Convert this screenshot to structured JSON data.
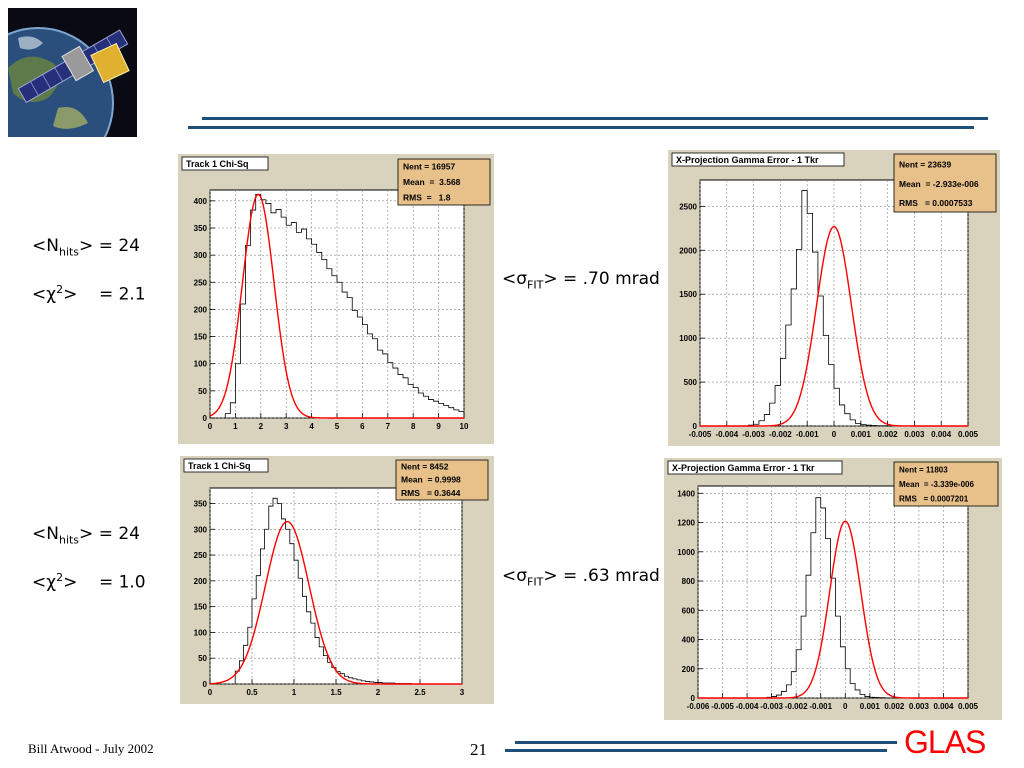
{
  "footer": {
    "author": "Bill Atwood  - July 2002",
    "page_number": "21",
    "brand": "GLAS"
  },
  "labels": {
    "top_nhits_prefix": "<N",
    "top_nhits_sub": "hits",
    "top_nhits_suffix": "> = 24",
    "top_chi_prefix": "<χ",
    "top_chi_sup": "2",
    "top_chi_suffix": ">    = 2.1",
    "top_sigma_prefix": "<σ",
    "top_sigma_sub": "FIT",
    "top_sigma_suffix": "> = .70 mrad",
    "bot_nhits_prefix": "<N",
    "bot_nhits_sub": "hits",
    "bot_nhits_suffix": "> = 24",
    "bot_chi_prefix": "<χ",
    "bot_chi_sup": "2",
    "bot_chi_suffix": ">    = 1.0",
    "bot_sigma_prefix": "<σ",
    "bot_sigma_sub": "FIT",
    "bot_sigma_suffix": "> = .63 mrad"
  },
  "colors": {
    "accent_line": "#1f4e79",
    "brand": "#ff0000",
    "fit_curve": "#ff0000",
    "stats_box": "#e8c08a",
    "panel_bg": "#d9d3bd"
  },
  "chart_data": [
    {
      "id": "chi1",
      "type": "histogram",
      "title": "Track 1 Chi-Sq",
      "stats": [
        "Nent = 16957",
        "Mean  =  3.568",
        "RMS  =   1.8"
      ],
      "xlim": [
        0,
        10
      ],
      "ylim": [
        0,
        420
      ],
      "xticks": [
        0,
        1,
        2,
        3,
        4,
        5,
        6,
        7,
        8,
        9,
        10
      ],
      "xticklabels": [
        "0",
        "1",
        "2",
        "3",
        "4",
        "5",
        "6",
        "7",
        "8",
        "9",
        "10"
      ],
      "yticks": [
        0,
        50,
        100,
        150,
        200,
        250,
        300,
        350,
        400
      ],
      "yticklabels": [
        "0",
        "50",
        "100",
        "150",
        "200",
        "250",
        "300",
        "350",
        "400"
      ],
      "hist": {
        "x0": 0.6,
        "bin": 0.2,
        "values": [
          8,
          28,
          100,
          210,
          318,
          383,
          412,
          402,
          395,
          378,
          384,
          370,
          355,
          360,
          342,
          348,
          330,
          320,
          305,
          292,
          275,
          262,
          250,
          232,
          222,
          198,
          186,
          172,
          155,
          146,
          125,
          118,
          102,
          92,
          80,
          74,
          62,
          56,
          46,
          40,
          34,
          31,
          27,
          23,
          19,
          15,
          12
        ]
      },
      "fit": {
        "type": "gauss",
        "mean": 1.9,
        "sigma": 0.62,
        "amp": 412
      }
    },
    {
      "id": "proj1",
      "type": "histogram",
      "title": "X-Projection Gamma Error - 1 Tkr",
      "stats": [
        "Nent = 23639",
        "Mean  = -2.933e-006",
        "RMS   = 0.0007533"
      ],
      "xlim": [
        -0.005,
        0.005
      ],
      "ylim": [
        0,
        2800
      ],
      "xticks": [
        -0.005,
        -0.004,
        -0.003,
        -0.002,
        -0.001,
        0,
        0.001,
        0.002,
        0.003,
        0.004,
        0.005
      ],
      "xticklabels": [
        "-0.005",
        "-0.004",
        "-0.003",
        "-0.002",
        "-0.001",
        "0",
        "0.001",
        "0.002",
        "0.003",
        "0.004",
        "0.005"
      ],
      "yticks": [
        0,
        500,
        1000,
        1500,
        2000,
        2500
      ],
      "yticklabels": [
        "0",
        "500",
        "1000",
        "1500",
        "2000",
        "2500"
      ],
      "hist": {
        "x0": -0.0032,
        "bin": 0.0002,
        "values": [
          10,
          20,
          60,
          130,
          260,
          460,
          770,
          1150,
          1560,
          2010,
          2680,
          2420,
          1980,
          1480,
          1030,
          700,
          430,
          240,
          140,
          70,
          30,
          15,
          10,
          5,
          3,
          2,
          1,
          1,
          0,
          0,
          0,
          0
        ]
      },
      "fit": {
        "type": "gauss",
        "mean": 0.0,
        "sigma": 0.00065,
        "amp": 2270
      }
    },
    {
      "id": "chi2",
      "type": "histogram",
      "title": "Track 1 Chi-Sq",
      "stats": [
        "Nent = 8452",
        "Mean  = 0.9998",
        "RMS   = 0.3644"
      ],
      "xlim": [
        0,
        3
      ],
      "ylim": [
        0,
        380
      ],
      "xticks": [
        0,
        0.5,
        1,
        1.5,
        2,
        2.5,
        3
      ],
      "xticklabels": [
        "0",
        "0.5",
        "1",
        "1.5",
        "2",
        "2.5",
        "3"
      ],
      "yticks": [
        0,
        50,
        100,
        150,
        200,
        250,
        300,
        350
      ],
      "yticklabels": [
        "0",
        "50",
        "100",
        "150",
        "200",
        "250",
        "300",
        "350"
      ],
      "hist": {
        "x0": 0.3,
        "bin": 0.05,
        "values": [
          25,
          45,
          75,
          110,
          165,
          210,
          262,
          300,
          345,
          360,
          350,
          320,
          300,
          272,
          240,
          205,
          170,
          140,
          118,
          90,
          72,
          55,
          42,
          32,
          24,
          20,
          15,
          12,
          10,
          8,
          6,
          5,
          4,
          3,
          3,
          2,
          2,
          2,
          1,
          1,
          1,
          1
        ]
      },
      "fit": {
        "type": "gauss",
        "mean": 0.92,
        "sigma": 0.26,
        "amp": 315
      }
    },
    {
      "id": "proj2",
      "type": "histogram",
      "title": "X-Projection Gamma Error - 1 Tkr",
      "stats": [
        "Nent = 11803",
        "Mean  = -3.339e-006",
        "RMS   = 0.0007201"
      ],
      "xlim": [
        -0.006,
        0.005
      ],
      "ylim": [
        0,
        1450
      ],
      "xticks": [
        -0.006,
        -0.005,
        -0.004,
        -0.003,
        -0.002,
        -0.001,
        0,
        0.001,
        0.002,
        0.003,
        0.004,
        0.005
      ],
      "xticklabels": [
        "-0.006",
        "-0.005",
        "-0.004",
        "-0.003",
        "-0.002",
        "-0.001",
        "0",
        "0.001",
        "0.002",
        "0.003",
        "0.004",
        "0.005"
      ],
      "yticks": [
        0,
        200,
        400,
        600,
        800,
        1000,
        1200,
        1400
      ],
      "yticklabels": [
        "0",
        "200",
        "400",
        "600",
        "800",
        "1000",
        "1200",
        "1400"
      ],
      "hist": {
        "x0": -0.0032,
        "bin": 0.0002,
        "values": [
          5,
          10,
          20,
          45,
          90,
          180,
          330,
          560,
          840,
          1130,
          1370,
          1300,
          1090,
          820,
          560,
          350,
          200,
          100,
          55,
          25,
          10,
          5,
          3,
          2,
          1,
          1,
          0,
          0,
          0,
          0,
          0,
          0
        ]
      },
      "fit": {
        "type": "gauss",
        "mean": 0.0,
        "sigma": 0.00063,
        "amp": 1210
      }
    }
  ]
}
